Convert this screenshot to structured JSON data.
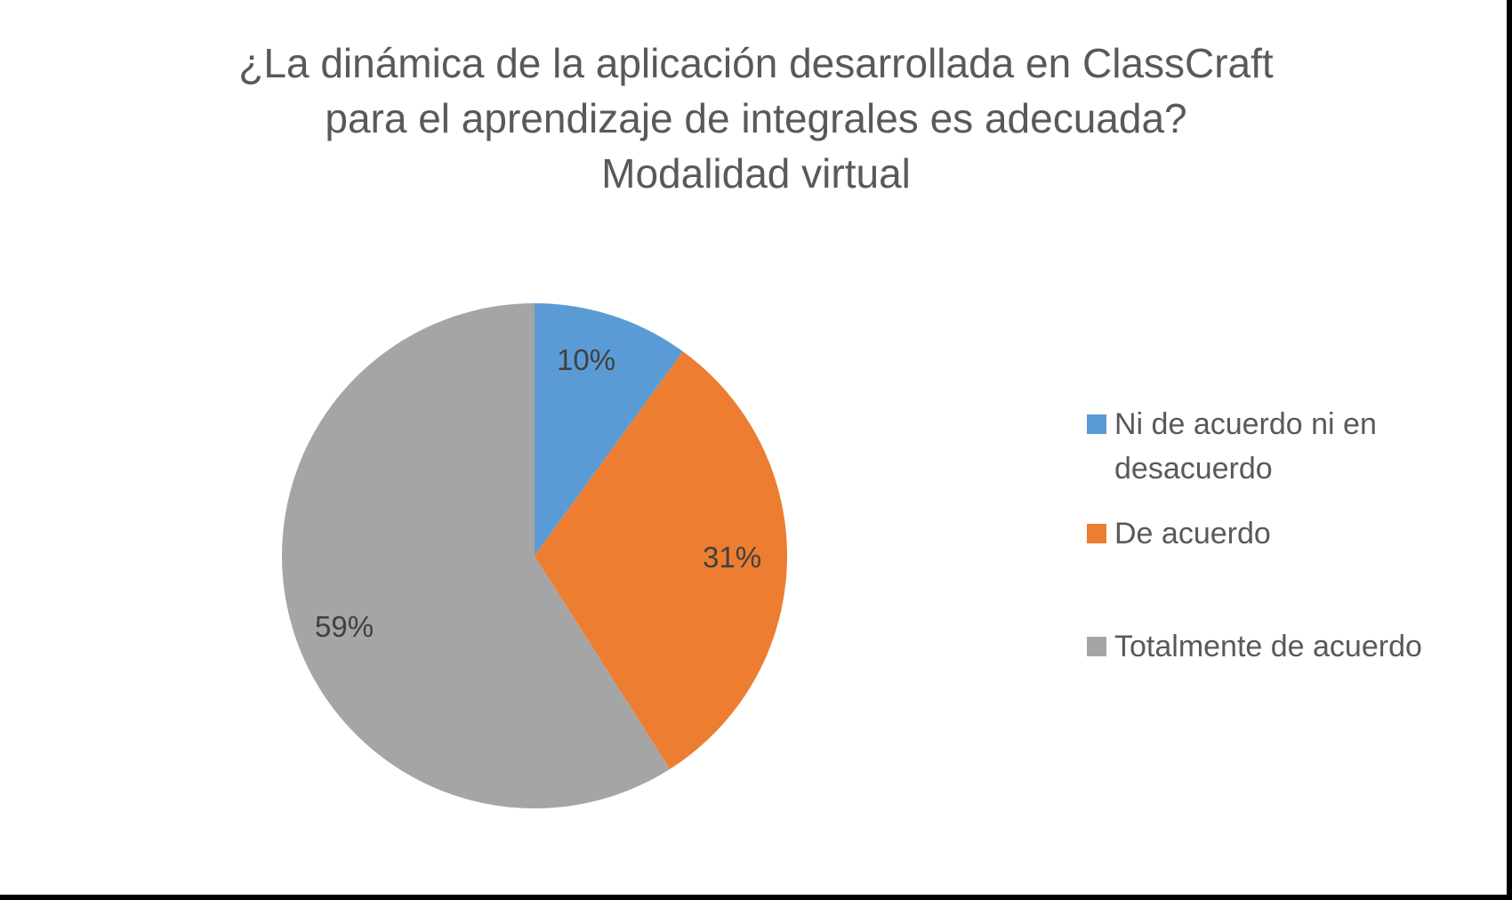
{
  "title": {
    "line1": "¿La dinámica de la aplicación desarrollada en ClassCraft",
    "line2": "para el aprendizaje de integrales es adecuada?",
    "line3": "Modalidad virtual"
  },
  "labels": {
    "ni": "10%",
    "de": "31%",
    "total": "59%"
  },
  "legend": {
    "items": [
      {
        "line1": "Ni de acuerdo ni en",
        "line2": "desacuerdo",
        "color": "#5B9BD5"
      },
      {
        "line1": "De acuerdo",
        "color": "#ED7D31"
      },
      {
        "line1": "Totalmente de acuerdo",
        "color": "#A5A5A5"
      }
    ]
  },
  "chart_data": {
    "type": "pie",
    "title": "¿La dinámica de la aplicación desarrollada en ClassCraft para el aprendizaje de integrales es adecuada? Modalidad virtual",
    "categories": [
      "Ni de acuerdo ni en desacuerdo",
      "De acuerdo",
      "Totalmente de acuerdo"
    ],
    "values": [
      10,
      31,
      59
    ],
    "unit": "%",
    "colors": [
      "#5B9BD5",
      "#ED7D31",
      "#A5A5A5"
    ],
    "start_angle": "12 o'clock, clockwise",
    "legend_position": "right",
    "data_labels": [
      "10%",
      "31%",
      "59%"
    ]
  }
}
